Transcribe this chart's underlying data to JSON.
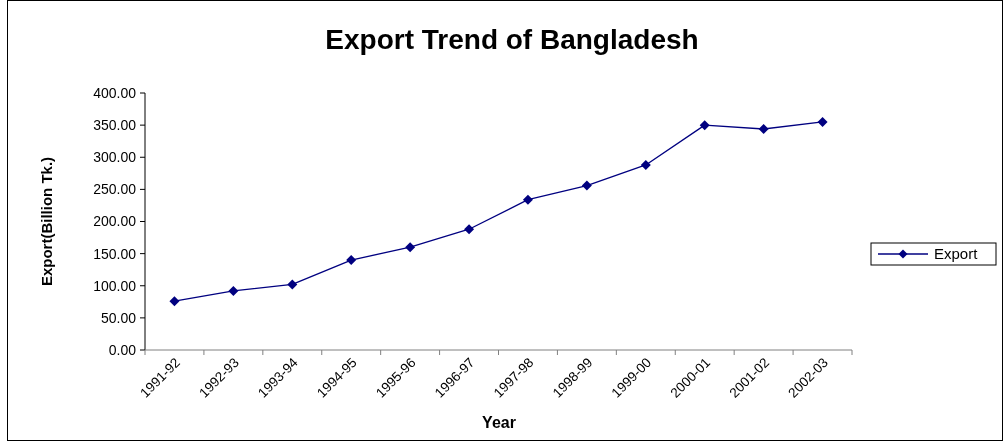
{
  "chart_data": {
    "type": "line",
    "title": "Export Trend of Bangladesh",
    "xlabel": "Year",
    "ylabel": "Export(Billion Tk.)",
    "categories": [
      "1991-92",
      "1992-93",
      "1993-94",
      "1994-95",
      "1995-96",
      "1996-97",
      "1997-98",
      "1998-99",
      "1999-00",
      "2000-01",
      "2001-02",
      "2002-03"
    ],
    "series": [
      {
        "name": "Export",
        "color": "#000080",
        "values": [
          76,
          92,
          102,
          140,
          160,
          188,
          234,
          256,
          288,
          350,
          344,
          355
        ]
      }
    ],
    "ylim": [
      0,
      400
    ],
    "yticks": [
      {
        "value": 0,
        "label": "0.00"
      },
      {
        "value": 50,
        "label": "50.00"
      },
      {
        "value": 100,
        "label": "100.00"
      },
      {
        "value": 150,
        "label": "150.00"
      },
      {
        "value": 200,
        "label": "200.00"
      },
      {
        "value": 250,
        "label": "250.00"
      },
      {
        "value": 300,
        "label": "300.00"
      },
      {
        "value": 350,
        "label": "350.00"
      },
      {
        "value": 400,
        "label": "400.00"
      }
    ],
    "grid": false,
    "legend": "right",
    "marker": "diamond",
    "line_style": "solid"
  }
}
